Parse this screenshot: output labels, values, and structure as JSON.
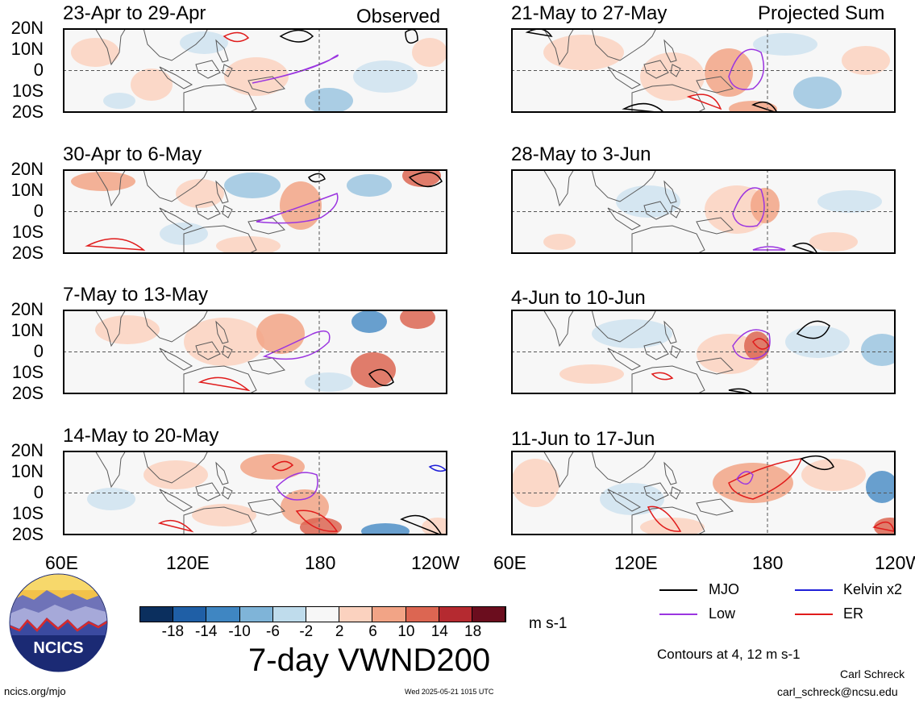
{
  "headers": {
    "observed": "Observed",
    "projected": "Projected Sum"
  },
  "panels": [
    {
      "title": "23-Apr to 29-Apr"
    },
    {
      "title": "30-Apr to 6-May"
    },
    {
      "title": "7-May to 13-May"
    },
    {
      "title": "14-May to 20-May"
    },
    {
      "title": "21-May to 27-May"
    },
    {
      "title": "28-May to 3-Jun"
    },
    {
      "title": "4-Jun to 10-Jun"
    },
    {
      "title": "11-Jun to 17-Jun"
    }
  ],
  "lat_labels": [
    "20N",
    "10N",
    "0",
    "10S",
    "20S"
  ],
  "lon_labels": [
    "60E",
    "120E",
    "180",
    "120W"
  ],
  "lon_labels_right": [
    "60E",
    "120E",
    "180",
    "120W"
  ],
  "colorbar": {
    "ticks": [
      "-18",
      "-14",
      "-10",
      "-6",
      "-2",
      "2",
      "6",
      "10",
      "14",
      "18"
    ],
    "units": "m s-1",
    "colors": [
      "#0b2f5e",
      "#1f5fa6",
      "#3f86c2",
      "#7fb4d8",
      "#bfdcec",
      "#f7f7f7",
      "#fbd2bf",
      "#f2a486",
      "#dc6652",
      "#b52a30",
      "#6b0d1e"
    ]
  },
  "title": "7-day VWND200",
  "legend": {
    "items": [
      {
        "label": "MJO",
        "color": "#000000"
      },
      {
        "label": "Kelvin x2",
        "color": "#1f1fd8"
      },
      {
        "label": "Low",
        "color": "#9b35e0"
      },
      {
        "label": "ER",
        "color": "#e01b1b"
      }
    ],
    "contours_note": "Contours at 4, 12 m s-1"
  },
  "logo": {
    "text": "NCICS"
  },
  "footer": {
    "url": "ncics.org/mjo",
    "timestamp": "Wed 2025-05-21 1015 UTC",
    "author": "Carl Schreck",
    "email": "carl_schreck@ncsu.edu"
  }
}
